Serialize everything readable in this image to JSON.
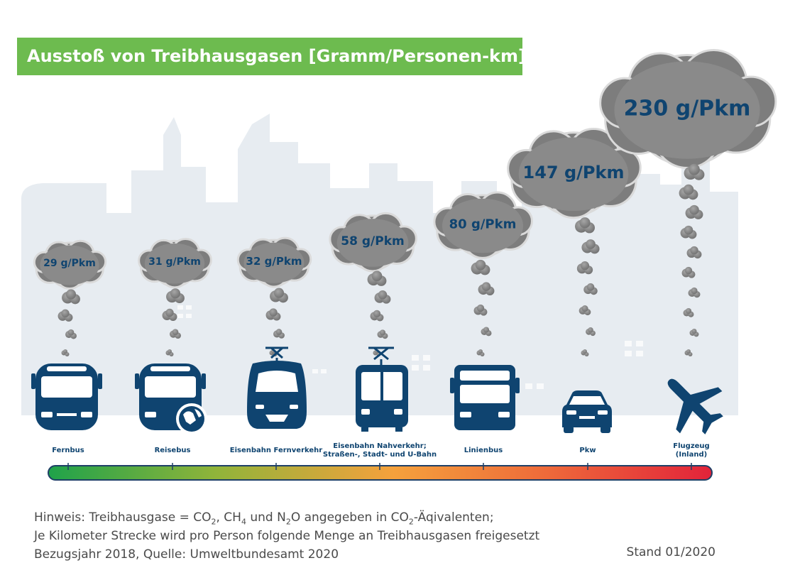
{
  "title": "Ausstoß von Treibhausgasen [Gramm/Personen-km]",
  "chart_data": {
    "type": "bar",
    "unit": "g/Pkm",
    "categories": [
      "Fernbus",
      "Reisebus",
      "Eisenbahn Fernverkehr",
      "Eisenbahn Nahverkehr; Straßen-, Stadt- und U-Bahn",
      "Linienbus",
      "Pkw",
      "Flugzeug (Inland)"
    ],
    "values": [
      29,
      31,
      32,
      58,
      80,
      147,
      230
    ],
    "value_labels": [
      "29 g/Pkm",
      "31 g/Pkm",
      "32 g/Pkm",
      "58 g/Pkm",
      "80 g/Pkm",
      "147 g/Pkm",
      "230 g/Pkm"
    ]
  },
  "modes": [
    {
      "label": "Fernbus",
      "icon": "coach-bus-icon"
    },
    {
      "label": "Reisebus",
      "icon": "tour-bus-globe-icon"
    },
    {
      "label": "Eisenbahn Fernverkehr",
      "icon": "intercity-train-icon"
    },
    {
      "label": "Eisenbahn Nahverkehr;\nStraßen-, Stadt- und U-Bahn",
      "icon": "tram-icon"
    },
    {
      "label": "Linienbus",
      "icon": "city-bus-icon"
    },
    {
      "label": "Pkw",
      "icon": "car-icon"
    },
    {
      "label": "Flugzeug\n(Inland)",
      "icon": "airplane-icon"
    }
  ],
  "scale_colors": [
    "#1fa24a",
    "#8fb43a",
    "#f5a13c",
    "#ee6a3a",
    "#e2233a"
  ],
  "colors": {
    "title_bg": "#6dbb4f",
    "icon": "#0f4470",
    "cloud": "#8c8c8c"
  },
  "footnote": {
    "hint_prefix": "Hinweis: Treibhausgase = CO",
    "ch": "CH",
    "n2o": "N",
    "hint_tail": "O angegeben in CO",
    "hint_end": "-Äqivalenten;",
    "line2": "Je Kilometer Strecke wird pro Person folgende Menge an Treibhausgasen freigesetzt",
    "line3": "Bezugsjahr 2018, Quelle: Umweltbundesamt 2020",
    "stand": "Stand 01/2020"
  }
}
